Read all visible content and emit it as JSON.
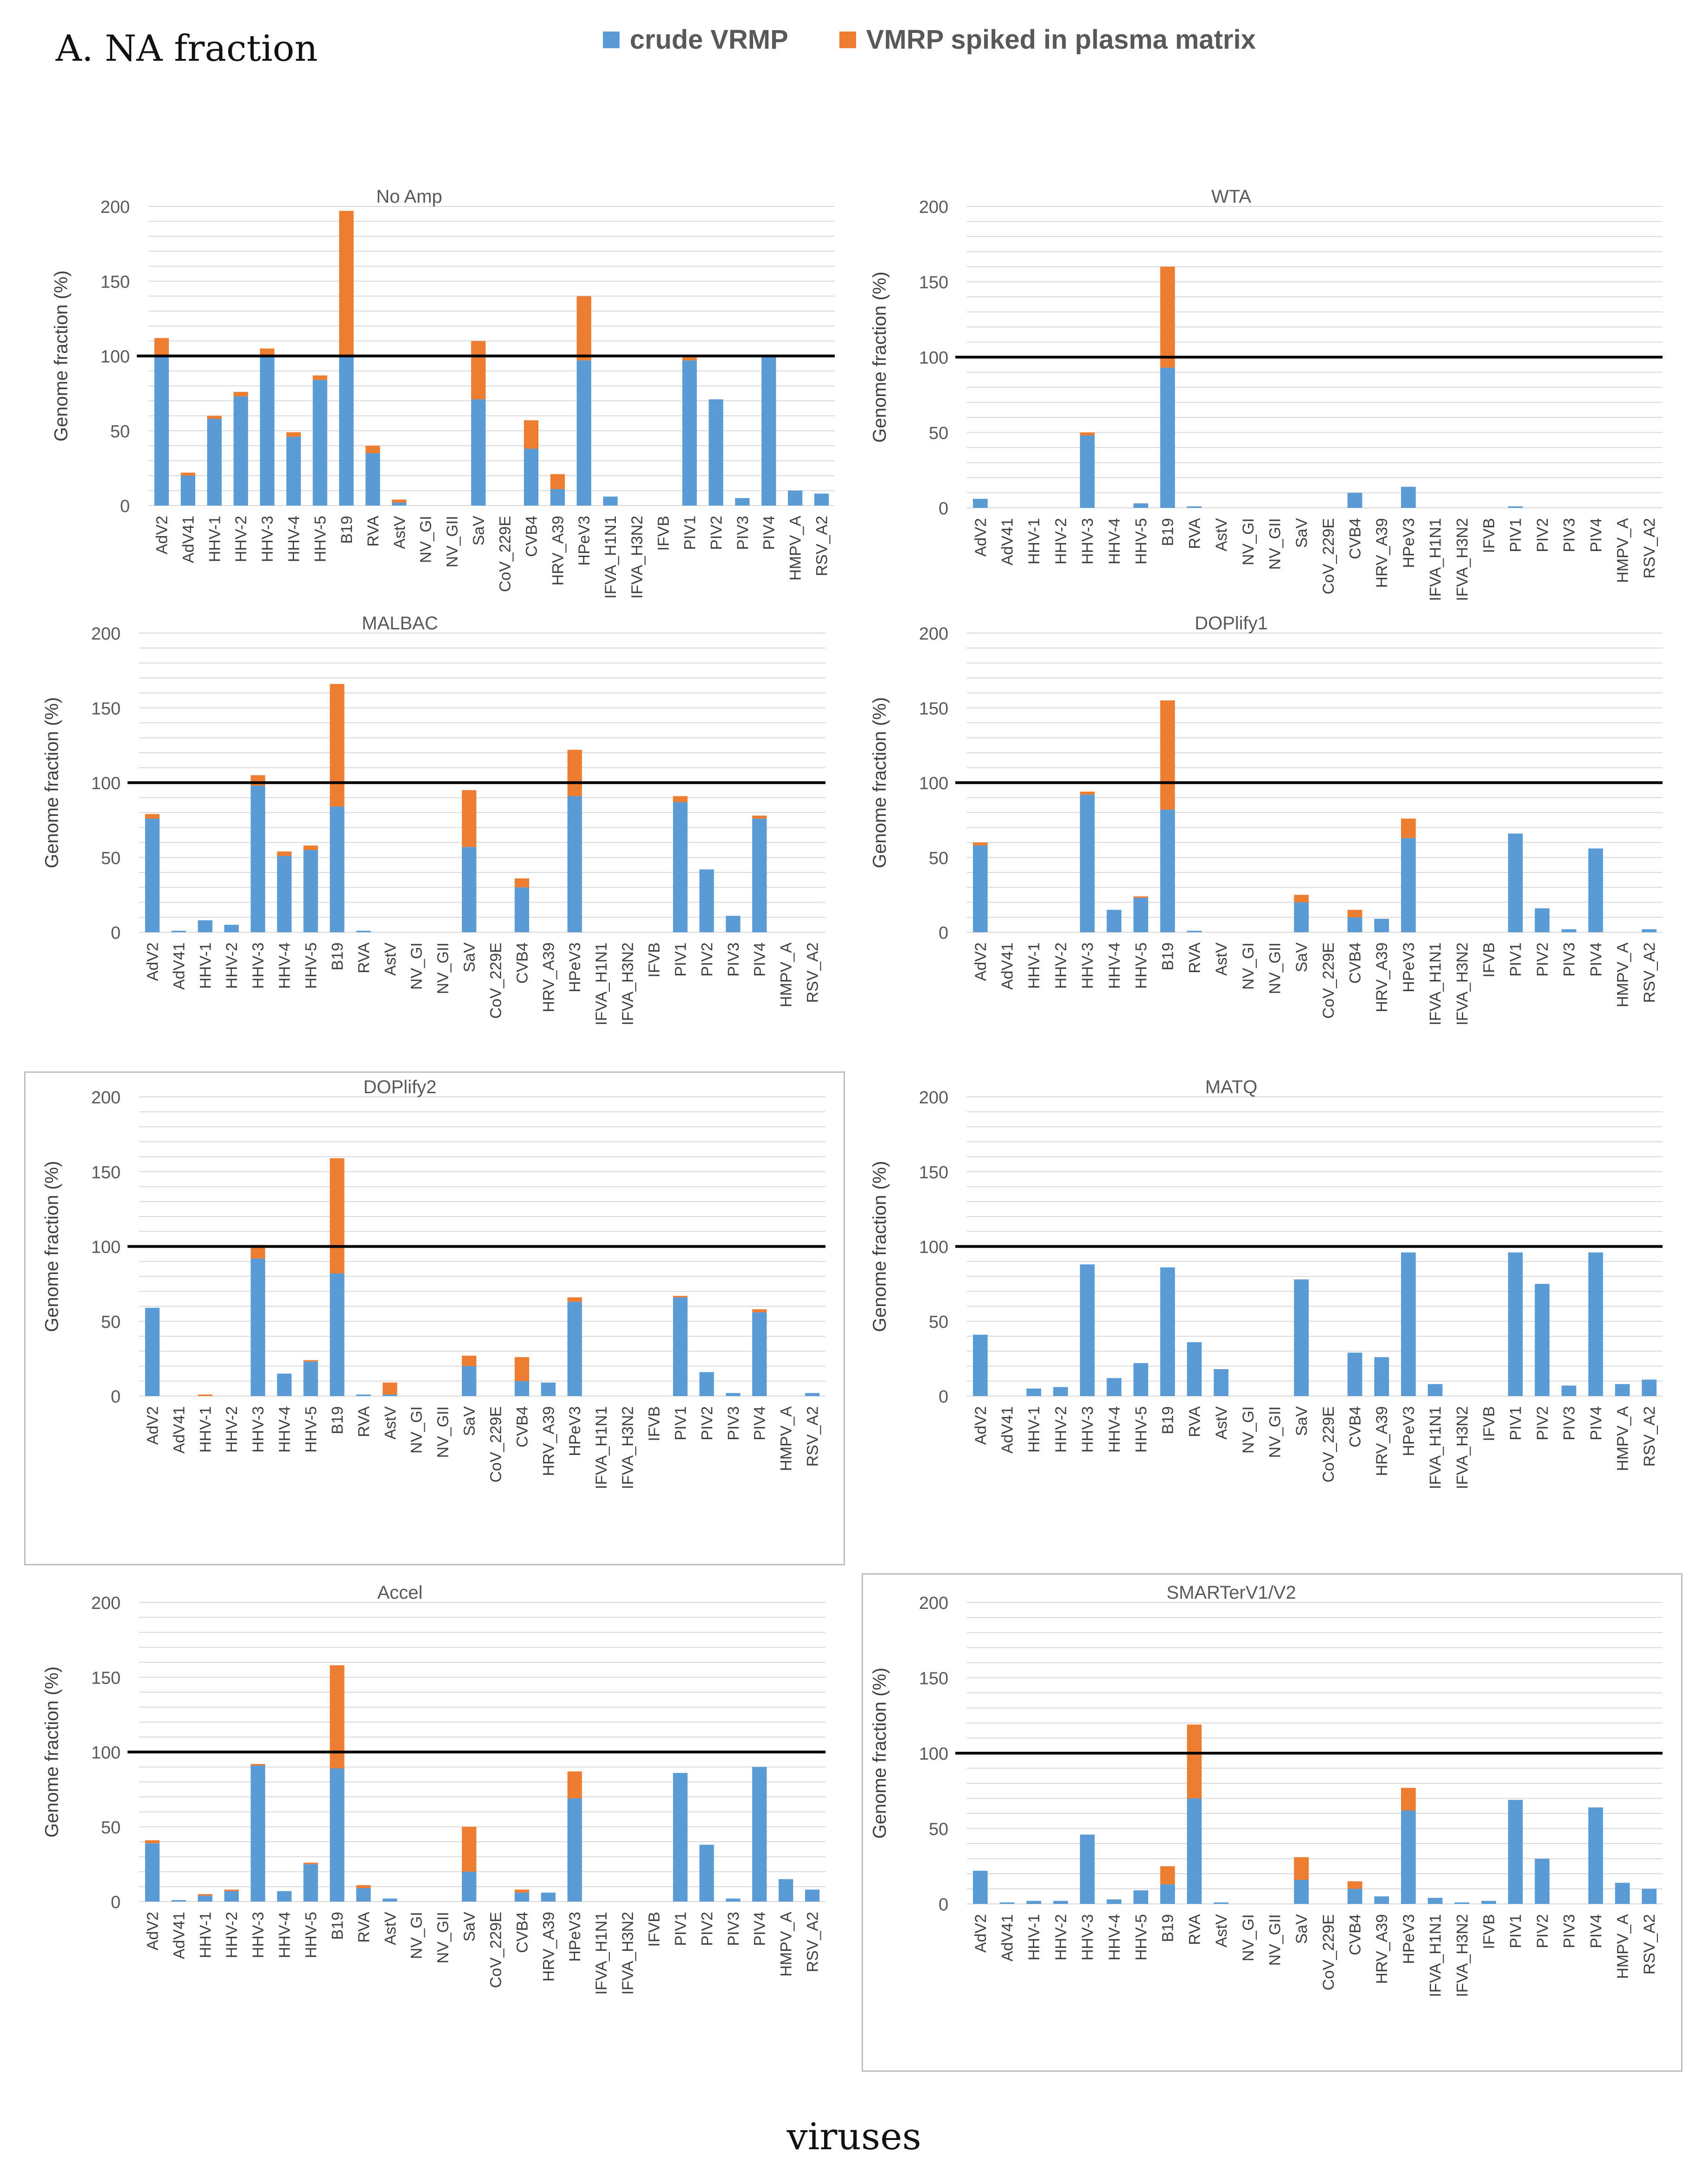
{
  "title": "A. NA fraction",
  "xaxis_title": "viruses",
  "legend": [
    {
      "label": "crude VRMP",
      "color": "#5b9bd5"
    },
    {
      "label": "VMRP spiked in plasma matrix",
      "color": "#ed7d31"
    }
  ],
  "reference_line": 100,
  "chart_data": [
    {
      "type": "bar",
      "title": "No Amp",
      "ylabel": "Genome fraction (%)",
      "ylim": [
        0,
        200
      ],
      "yticks": [
        0,
        50,
        100,
        150,
        200
      ],
      "categories": [
        "AdV2",
        "AdV41",
        "HHV-1",
        "HHV-2",
        "HHV-3",
        "HHV-4",
        "HHV-5",
        "B19",
        "RVA",
        "AstV",
        "NV_GI",
        "NV_GII",
        "SaV",
        "CoV_229E",
        "CVB4",
        "HRV_A39",
        "HPeV3",
        "IFVA_H1N1",
        "IFVA_H3N2",
        "IFVB",
        "PIV1",
        "PIV2",
        "PIV3",
        "PIV4",
        "HMPV_A",
        "RSV_A2"
      ],
      "series": [
        {
          "name": "crude VRMP",
          "values": [
            100,
            20,
            58,
            73,
            100,
            46,
            84,
            100,
            35,
            2,
            0,
            0,
            71,
            0,
            38,
            11,
            97,
            6,
            0,
            0,
            97,
            71,
            5,
            100,
            10,
            8
          ]
        },
        {
          "name": "VMRP spiked in plasma matrix",
          "values": [
            12,
            2,
            2,
            3,
            5,
            3,
            3,
            97,
            5,
            2,
            0,
            0,
            39,
            0,
            19,
            10,
            43,
            0,
            0,
            0,
            2,
            0,
            0,
            0,
            0,
            0
          ]
        }
      ]
    },
    {
      "type": "bar",
      "title": "WTA",
      "ylabel": "Genome fraction (%)",
      "ylim": [
        0,
        200
      ],
      "yticks": [
        0,
        50,
        100,
        150,
        200
      ],
      "categories": [
        "AdV2",
        "AdV41",
        "HHV-1",
        "HHV-2",
        "HHV-3",
        "HHV-4",
        "HHV-5",
        "B19",
        "RVA",
        "AstV",
        "NV_GI",
        "NV_GII",
        "SaV",
        "CoV_229E",
        "CVB4",
        "HRV_A39",
        "HPeV3",
        "IFVA_H1N1",
        "IFVA_H3N2",
        "IFVB",
        "PIV1",
        "PIV2",
        "PIV3",
        "PIV4",
        "HMPV_A",
        "RSV_A2"
      ],
      "series": [
        {
          "name": "crude VRMP",
          "values": [
            6,
            0,
            0,
            0,
            48,
            0,
            3,
            93,
            1,
            0,
            0,
            0,
            0,
            0,
            10,
            0,
            14,
            0,
            0,
            0,
            1,
            0,
            0,
            0,
            0,
            0
          ]
        },
        {
          "name": "VMRP spiked in plasma matrix",
          "values": [
            0,
            0,
            0,
            0,
            2,
            0,
            0,
            67,
            0,
            0,
            0,
            0,
            0,
            0,
            0,
            0,
            0,
            0,
            0,
            0,
            0,
            0,
            0,
            0,
            0,
            0
          ]
        }
      ]
    },
    {
      "type": "bar",
      "title": "MALBAC",
      "ylabel": "Genome fraction (%)",
      "ylim": [
        0,
        200
      ],
      "yticks": [
        0,
        50,
        100,
        150,
        200
      ],
      "categories": [
        "AdV2",
        "AdV41",
        "HHV-1",
        "HHV-2",
        "HHV-3",
        "HHV-4",
        "HHV-5",
        "B19",
        "RVA",
        "AstV",
        "NV_GI",
        "NV_GII",
        "SaV",
        "CoV_229E",
        "CVB4",
        "HRV_A39",
        "HPeV3",
        "IFVA_H1N1",
        "IFVA_H3N2",
        "IFVB",
        "PIV1",
        "PIV2",
        "PIV3",
        "PIV4",
        "HMPV_A",
        "RSV_A2"
      ],
      "series": [
        {
          "name": "crude VRMP",
          "values": [
            76,
            1,
            8,
            5,
            98,
            51,
            55,
            84,
            1,
            0,
            0,
            0,
            57,
            0,
            30,
            0,
            91,
            0,
            0,
            0,
            87,
            42,
            11,
            76,
            0,
            0
          ]
        },
        {
          "name": "VMRP spiked in plasma matrix",
          "values": [
            3,
            0,
            0,
            0,
            7,
            3,
            3,
            82,
            0,
            0,
            0,
            0,
            38,
            0,
            6,
            0,
            31,
            0,
            0,
            0,
            4,
            0,
            0,
            2,
            0,
            0
          ]
        }
      ]
    },
    {
      "type": "bar",
      "title": "DOPlify1",
      "ylabel": "Genome fraction (%)",
      "ylim": [
        0,
        200
      ],
      "yticks": [
        0,
        50,
        100,
        150,
        200
      ],
      "categories": [
        "AdV2",
        "AdV41",
        "HHV-1",
        "HHV-2",
        "HHV-3",
        "HHV-4",
        "HHV-5",
        "B19",
        "RVA",
        "AstV",
        "NV_GI",
        "NV_GII",
        "SaV",
        "CoV_229E",
        "CVB4",
        "HRV_A39",
        "HPeV3",
        "IFVA_H1N1",
        "IFVA_H3N2",
        "IFVB",
        "PIV1",
        "PIV2",
        "PIV3",
        "PIV4",
        "HMPV_A",
        "RSV_A2"
      ],
      "series": [
        {
          "name": "crude VRMP",
          "values": [
            58,
            0,
            0,
            0,
            92,
            15,
            23,
            82,
            1,
            0,
            0,
            0,
            20,
            0,
            10,
            9,
            63,
            0,
            0,
            0,
            66,
            16,
            2,
            56,
            0,
            2
          ]
        },
        {
          "name": "VMRP spiked in plasma matrix",
          "values": [
            2,
            0,
            0,
            0,
            2,
            0,
            1,
            73,
            0,
            0,
            0,
            0,
            5,
            0,
            5,
            0,
            13,
            0,
            0,
            0,
            0,
            0,
            0,
            0,
            0,
            0
          ]
        }
      ]
    },
    {
      "type": "bar",
      "title": "DOPlify2",
      "ylabel": "Genome fraction (%)",
      "ylim": [
        0,
        200
      ],
      "yticks": [
        0,
        50,
        100,
        150,
        200
      ],
      "categories": [
        "AdV2",
        "AdV41",
        "HHV-1",
        "HHV-2",
        "HHV-3",
        "HHV-4",
        "HHV-5",
        "B19",
        "RVA",
        "AstV",
        "NV_GI",
        "NV_GII",
        "SaV",
        "CoV_229E",
        "CVB4",
        "HRV_A39",
        "HPeV3",
        "IFVA_H1N1",
        "IFVA_H3N2",
        "IFVB",
        "PIV1",
        "PIV2",
        "PIV3",
        "PIV4",
        "HMPV_A",
        "RSV_A2"
      ],
      "series": [
        {
          "name": "crude VRMP",
          "values": [
            59,
            0,
            0,
            0,
            92,
            15,
            23,
            82,
            1,
            1,
            0,
            0,
            20,
            0,
            10,
            9,
            63,
            0,
            0,
            0,
            66,
            16,
            2,
            56,
            0,
            2
          ]
        },
        {
          "name": "VMRP spiked in plasma matrix",
          "values": [
            0,
            0,
            1,
            0,
            9,
            0,
            1,
            77,
            0,
            8,
            0,
            0,
            7,
            0,
            16,
            0,
            3,
            0,
            0,
            0,
            1,
            0,
            0,
            2,
            0,
            0
          ]
        }
      ]
    },
    {
      "type": "bar",
      "title": "MATQ",
      "ylabel": "Genome fraction (%)",
      "ylim": [
        0,
        200
      ],
      "yticks": [
        0,
        50,
        100,
        150,
        200
      ],
      "categories": [
        "AdV2",
        "AdV41",
        "HHV-1",
        "HHV-2",
        "HHV-3",
        "HHV-4",
        "HHV-5",
        "B19",
        "RVA",
        "AstV",
        "NV_GI",
        "NV_GII",
        "SaV",
        "CoV_229E",
        "CVB4",
        "HRV_A39",
        "HPeV3",
        "IFVA_H1N1",
        "IFVA_H3N2",
        "IFVB",
        "PIV1",
        "PIV2",
        "PIV3",
        "PIV4",
        "HMPV_A",
        "RSV_A2"
      ],
      "series": [
        {
          "name": "crude VRMP",
          "values": [
            41,
            0,
            5,
            6,
            88,
            12,
            22,
            86,
            36,
            18,
            0,
            0,
            78,
            0,
            29,
            26,
            96,
            8,
            0,
            0,
            96,
            75,
            7,
            96,
            8,
            11
          ]
        },
        {
          "name": "VMRP spiked in plasma matrix",
          "values": [
            0,
            0,
            0,
            0,
            0,
            0,
            0,
            0,
            0,
            0,
            0,
            0,
            0,
            0,
            0,
            0,
            0,
            0,
            0,
            0,
            0,
            0,
            0,
            0,
            0,
            0
          ]
        }
      ]
    },
    {
      "type": "bar",
      "title": "Accel",
      "ylabel": "Genome fraction (%)",
      "ylim": [
        0,
        200
      ],
      "yticks": [
        0,
        50,
        100,
        150,
        200
      ],
      "categories": [
        "AdV2",
        "AdV41",
        "HHV-1",
        "HHV-2",
        "HHV-3",
        "HHV-4",
        "HHV-5",
        "B19",
        "RVA",
        "AstV",
        "NV_GI",
        "NV_GII",
        "SaV",
        "CoV_229E",
        "CVB4",
        "HRV_A39",
        "HPeV3",
        "IFVA_H1N1",
        "IFVA_H3N2",
        "IFVB",
        "PIV1",
        "PIV2",
        "PIV3",
        "PIV4",
        "HMPV_A",
        "RSV_A2"
      ],
      "series": [
        {
          "name": "crude VRMP",
          "values": [
            39,
            1,
            4,
            7,
            91,
            7,
            25,
            89,
            9,
            2,
            0,
            0,
            20,
            0,
            6,
            6,
            69,
            0,
            0,
            0,
            86,
            38,
            2,
            90,
            15,
            8
          ]
        },
        {
          "name": "VMRP spiked in plasma matrix",
          "values": [
            2,
            0,
            1,
            1,
            1,
            0,
            1,
            69,
            2,
            0,
            0,
            0,
            30,
            0,
            2,
            0,
            18,
            0,
            0,
            0,
            0,
            0,
            0,
            0,
            0,
            0
          ]
        }
      ]
    },
    {
      "type": "bar",
      "title": "SMARTerV1/V2",
      "ylabel": "Genome fraction (%)",
      "ylim": [
        0,
        200
      ],
      "yticks": [
        0,
        50,
        100,
        150,
        200
      ],
      "categories": [
        "AdV2",
        "AdV41",
        "HHV-1",
        "HHV-2",
        "HHV-3",
        "HHV-4",
        "HHV-5",
        "B19",
        "RVA",
        "AstV",
        "NV_GI",
        "NV_GII",
        "SaV",
        "CoV_229E",
        "CVB4",
        "HRV_A39",
        "HPeV3",
        "IFVA_H1N1",
        "IFVA_H3N2",
        "IFVB",
        "PIV1",
        "PIV2",
        "PIV3",
        "PIV4",
        "HMPV_A",
        "RSV_A2"
      ],
      "series": [
        {
          "name": "crude VRMP",
          "values": [
            22,
            1,
            2,
            2,
            46,
            3,
            9,
            13,
            70,
            1,
            0,
            0,
            16,
            0,
            10,
            5,
            62,
            4,
            1,
            2,
            69,
            30,
            0,
            64,
            14,
            10
          ]
        },
        {
          "name": "VMRP spiked in plasma matrix",
          "values": [
            0,
            0,
            0,
            0,
            0,
            0,
            0,
            12,
            49,
            0,
            0,
            0,
            15,
            0,
            5,
            0,
            15,
            0,
            0,
            0,
            0,
            0,
            0,
            0,
            0,
            0
          ]
        }
      ]
    }
  ]
}
